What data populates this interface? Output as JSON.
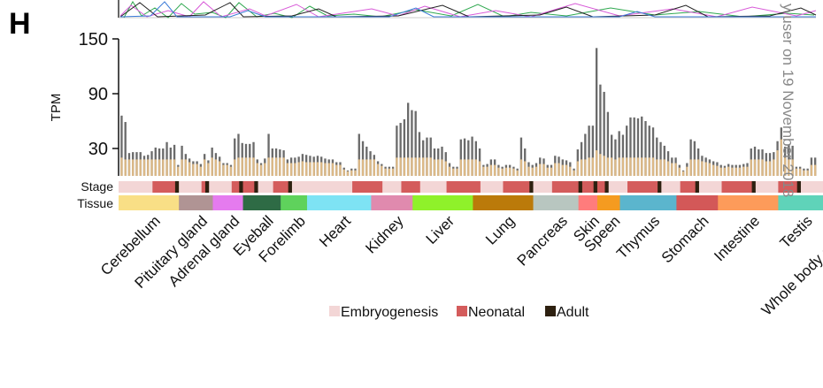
{
  "panel_letter": "H",
  "watermark": "y user on 19 November 2018",
  "chart_data": {
    "type": "bar",
    "title": "",
    "ylabel": "TPM",
    "xlabel": "",
    "ylim": [
      0,
      150
    ],
    "yticks": [
      30,
      90,
      150
    ],
    "grid": false,
    "series": [
      {
        "name": "",
        "color": "#6b6b6b",
        "values": [
          66,
          59,
          25,
          26,
          26,
          26,
          22,
          23,
          27,
          31,
          30,
          30,
          37,
          31,
          34,
          12,
          33,
          24,
          19,
          16,
          16,
          13,
          24,
          17,
          31,
          25,
          21,
          14,
          14,
          12,
          41,
          46,
          36,
          35,
          35,
          37,
          18,
          14,
          19,
          46,
          30,
          30,
          29,
          28,
          18,
          20,
          20,
          21,
          24,
          23,
          22,
          21,
          22,
          21,
          19,
          18,
          18,
          15,
          15,
          9,
          6,
          8,
          8,
          46,
          38,
          32,
          27,
          23,
          16,
          13,
          10,
          10,
          10,
          55,
          58,
          62,
          80,
          72,
          71,
          48,
          39,
          42,
          42,
          30,
          30,
          32,
          26,
          14,
          10,
          10,
          40,
          41,
          39,
          43,
          38,
          30,
          12,
          13,
          18,
          18,
          12,
          10,
          12,
          12,
          10,
          8,
          42,
          30,
          15,
          12,
          14,
          20,
          19,
          12,
          12,
          22,
          21,
          18,
          17,
          15,
          8,
          29,
          37,
          46,
          55,
          55,
          140,
          100,
          92,
          70,
          45,
          40,
          49,
          45,
          55,
          64,
          64,
          63,
          65,
          60,
          55,
          53,
          42,
          37,
          33,
          27,
          20,
          20,
          12,
          6,
          14,
          40,
          38,
          30,
          22,
          20,
          18,
          16,
          15,
          12,
          11,
          13,
          12,
          12,
          12,
          13,
          14,
          30,
          32,
          29,
          29,
          25,
          25,
          26,
          38,
          53,
          32,
          34,
          33,
          10,
          10,
          8,
          8,
          20,
          20
        ]
      },
      {
        "name": "",
        "color": "#dcb987",
        "values": [
          20,
          18,
          18,
          18,
          18,
          18,
          18,
          18,
          18,
          18,
          18,
          18,
          18,
          18,
          18,
          10,
          18,
          18,
          15,
          13,
          13,
          10,
          18,
          14,
          20,
          18,
          16,
          12,
          12,
          10,
          18,
          20,
          20,
          20,
          20,
          20,
          14,
          12,
          14,
          20,
          20,
          20,
          20,
          20,
          14,
          14,
          14,
          15,
          16,
          15,
          15,
          15,
          15,
          15,
          14,
          14,
          14,
          12,
          12,
          7,
          5,
          6,
          6,
          18,
          18,
          18,
          18,
          18,
          13,
          11,
          8,
          8,
          8,
          20,
          20,
          20,
          20,
          20,
          20,
          20,
          20,
          20,
          20,
          18,
          18,
          18,
          16,
          10,
          8,
          8,
          18,
          18,
          18,
          18,
          18,
          16,
          10,
          10,
          12,
          12,
          9,
          8,
          9,
          9,
          8,
          6,
          18,
          16,
          10,
          9,
          10,
          13,
          13,
          9,
          9,
          14,
          14,
          12,
          12,
          10,
          6,
          16,
          18,
          18,
          20,
          20,
          28,
          24,
          22,
          20,
          20,
          18,
          20,
          20,
          20,
          20,
          20,
          20,
          20,
          20,
          20,
          20,
          18,
          18,
          18,
          16,
          14,
          14,
          9,
          5,
          10,
          18,
          18,
          18,
          16,
          15,
          14,
          12,
          11,
          9,
          9,
          10,
          9,
          9,
          9,
          10,
          10,
          18,
          18,
          18,
          18,
          16,
          16,
          18,
          28,
          40,
          20,
          18,
          18,
          8,
          8,
          6,
          6,
          12,
          12
        ]
      }
    ],
    "stage_legend": [
      {
        "name": "Embryogenesis",
        "color": "#f3d6d6"
      },
      {
        "name": "Neonatal",
        "color": "#d45c5c"
      },
      {
        "name": "Adult",
        "color": "#2d2010"
      }
    ],
    "row_labels": {
      "stage": "Stage",
      "tissue": "Tissue"
    },
    "stage_blocks": [
      {
        "stage": "Embryogenesis",
        "bars": 9
      },
      {
        "stage": "Neonatal",
        "bars": 6
      },
      {
        "stage": "Adult",
        "bars": 1
      },
      {
        "stage": "Embryogenesis",
        "bars": 6
      },
      {
        "stage": "Neonatal",
        "bars": 1
      },
      {
        "stage": "Adult",
        "bars": 1
      },
      {
        "stage": "Embryogenesis",
        "bars": 6
      },
      {
        "stage": "Neonatal",
        "bars": 2
      },
      {
        "stage": "Adult",
        "bars": 1
      },
      {
        "stage": "Neonatal",
        "bars": 3
      },
      {
        "stage": "Adult",
        "bars": 1
      },
      {
        "stage": "Embryogenesis",
        "bars": 4
      },
      {
        "stage": "Neonatal",
        "bars": 4
      },
      {
        "stage": "Adult",
        "bars": 1
      },
      {
        "stage": "Embryogenesis",
        "bars": 16
      },
      {
        "stage": "Neonatal",
        "bars": 8
      },
      {
        "stage": "Embryogenesis",
        "bars": 5
      },
      {
        "stage": "Neonatal",
        "bars": 5
      },
      {
        "stage": "Embryogenesis",
        "bars": 7
      },
      {
        "stage": "Neonatal",
        "bars": 9
      },
      {
        "stage": "Embryogenesis",
        "bars": 6
      },
      {
        "stage": "Neonatal",
        "bars": 7
      },
      {
        "stage": "Adult",
        "bars": 1
      },
      {
        "stage": "Embryogenesis",
        "bars": 5
      },
      {
        "stage": "Neonatal",
        "bars": 7
      },
      {
        "stage": "Adult",
        "bars": 1
      },
      {
        "stage": "Neonatal",
        "bars": 3
      },
      {
        "stage": "Adult",
        "bars": 1
      },
      {
        "stage": "Neonatal",
        "bars": 2
      },
      {
        "stage": "Adult",
        "bars": 1
      },
      {
        "stage": "Embryogenesis",
        "bars": 5
      },
      {
        "stage": "Neonatal",
        "bars": 8
      },
      {
        "stage": "Adult",
        "bars": 1
      },
      {
        "stage": "Embryogenesis",
        "bars": 5
      },
      {
        "stage": "Neonatal",
        "bars": 4
      },
      {
        "stage": "Adult",
        "bars": 1
      },
      {
        "stage": "Embryogenesis",
        "bars": 6
      },
      {
        "stage": "Neonatal",
        "bars": 8
      },
      {
        "stage": "Adult",
        "bars": 1
      },
      {
        "stage": "Embryogenesis",
        "bars": 6
      },
      {
        "stage": "Neonatal",
        "bars": 5
      },
      {
        "stage": "Adult",
        "bars": 1
      },
      {
        "stage": "Embryogenesis",
        "bars": 8
      },
      {
        "stage": "Neonatal",
        "bars": 4
      }
    ],
    "tissues": [
      {
        "name": "Cerebellum",
        "bars": 16,
        "color": "#f9df86"
      },
      {
        "name": "Pituitary gland",
        "bars": 9,
        "color": "#b09494"
      },
      {
        "name": "Adrenal gland",
        "bars": 8,
        "color": "#e57bef"
      },
      {
        "name": "Eyeball",
        "bars": 10,
        "color": "#2e6b45"
      },
      {
        "name": "Forelimb",
        "bars": 7,
        "color": "#5fd25c"
      },
      {
        "name": "Heart",
        "bars": 17,
        "color": "#7ee3f4"
      },
      {
        "name": "Kidney",
        "bars": 11,
        "color": "#e08aae"
      },
      {
        "name": "Liver",
        "bars": 16,
        "color": "#8ff12a"
      },
      {
        "name": "Lung",
        "bars": 16,
        "color": "#bb7a0a"
      },
      {
        "name": "Pancreas",
        "bars": 12,
        "color": "#b8c6c0"
      },
      {
        "name": "Skin",
        "bars": 5,
        "color": "#ff7c7c"
      },
      {
        "name": "Speen",
        "bars": 6,
        "color": "#f59b20"
      },
      {
        "name": "Thymus",
        "bars": 15,
        "color": "#5bb5cd"
      },
      {
        "name": "Stomach",
        "bars": 11,
        "color": "#d35858"
      },
      {
        "name": "Intestine",
        "bars": 16,
        "color": "#fd9b5a"
      },
      {
        "name": "Testis",
        "bars": 12,
        "color": "#5fd3b9"
      },
      {
        "name": "Whole body embryo",
        "bars": 14,
        "color": "#f6c823"
      }
    ]
  }
}
